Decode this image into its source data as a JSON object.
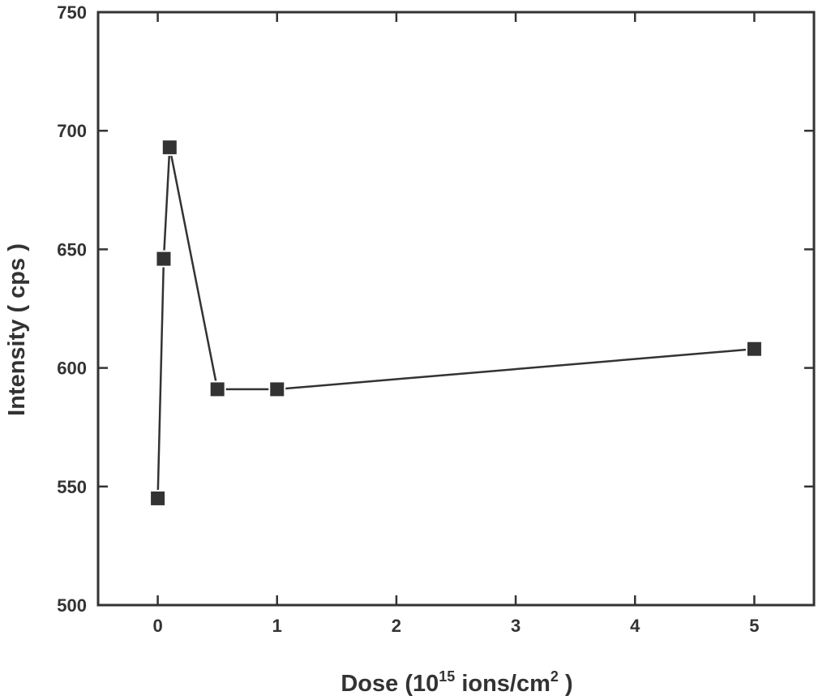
{
  "chart_data": {
    "type": "line",
    "title": "",
    "xlabel_parts": [
      "Dose (10",
      "15",
      " ions/cm",
      "2",
      " )"
    ],
    "ylabel": "Intensity ( cps )",
    "xlim": [
      -0.5,
      5.5
    ],
    "ylim": [
      500,
      750
    ],
    "xticks": [
      0,
      1,
      2,
      3,
      4,
      5
    ],
    "xtick_labels": [
      "0",
      "1",
      "2",
      "3",
      "4",
      "5"
    ],
    "yticks": [
      500,
      550,
      600,
      650,
      700,
      750
    ],
    "ytick_labels": [
      "500",
      "550",
      "600",
      "650",
      "700",
      "750"
    ],
    "grid": false,
    "series": [
      {
        "marker": "square",
        "color": "#333333",
        "x": [
          0,
          0.05,
          0.1,
          0.5,
          1,
          5
        ],
        "y": [
          545,
          646,
          693,
          591,
          591,
          608
        ]
      }
    ]
  }
}
